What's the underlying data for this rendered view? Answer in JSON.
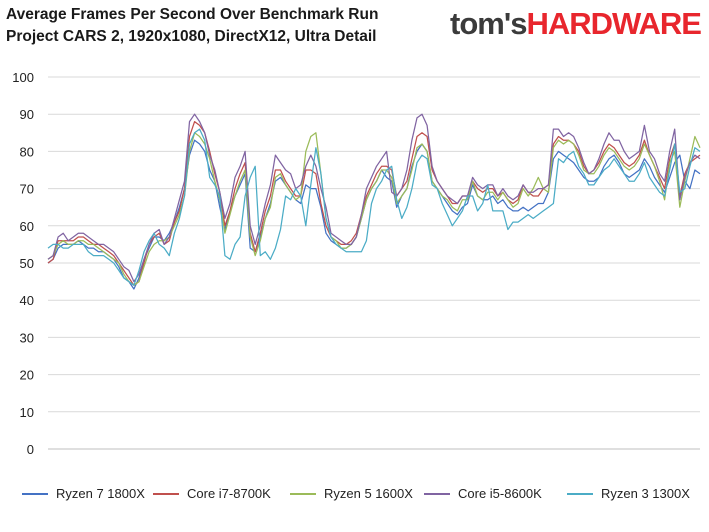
{
  "title_line1": "Average Frames Per Second Over Benchmark Run",
  "title_line2": "Project CARS 2, 1920x1080, DirectX12, Ultra Detail",
  "logo": {
    "part1": "tom's",
    "part2": "HARDWARE"
  },
  "chart_data": {
    "type": "line",
    "title": "Average Frames Per Second Over Benchmark Run",
    "subtitle": "Project CARS 2, 1920x1080, DirectX12, Ultra Detail",
    "xlabel": "",
    "ylabel": "",
    "ylim": [
      0,
      100
    ],
    "yticks": [
      0,
      10,
      20,
      30,
      40,
      50,
      60,
      70,
      80,
      90,
      100
    ],
    "grid": true,
    "legend_position": "bottom",
    "series": [
      {
        "name": "Ryzen 7 1800X",
        "color": "#4472c4",
        "values": [
          50,
          51,
          54,
          55,
          55,
          55,
          56,
          55,
          54,
          54,
          53,
          53,
          52,
          51,
          49,
          46,
          45,
          43,
          46,
          51,
          54,
          57,
          57,
          56,
          58,
          61,
          65,
          70,
          79,
          83,
          82,
          80,
          75,
          72,
          65,
          59,
          64,
          68,
          71,
          74,
          54,
          53,
          57,
          62,
          66,
          72,
          73,
          71,
          69,
          67,
          66,
          71,
          70,
          70,
          65,
          58,
          56,
          55,
          54,
          54,
          55,
          57,
          62,
          67,
          70,
          72,
          75,
          73,
          72,
          65,
          68,
          70,
          76,
          80,
          82,
          80,
          72,
          70,
          68,
          66,
          64,
          63,
          65,
          66,
          71,
          68,
          67,
          67,
          68,
          66,
          67,
          65,
          64,
          64,
          65,
          64,
          65,
          66,
          66,
          69,
          78,
          80,
          79,
          78,
          77,
          75,
          73,
          72,
          72,
          73,
          76,
          78,
          79,
          77,
          74,
          73,
          74,
          75,
          78,
          76,
          73,
          71,
          69,
          73,
          77,
          79,
          72,
          70,
          75,
          74
        ]
      },
      {
        "name": "Core i7-8700K",
        "color": "#c0504d",
        "values": [
          50,
          51,
          56,
          56,
          56,
          56,
          57,
          57,
          56,
          55,
          55,
          54,
          53,
          52,
          50,
          48,
          46,
          44,
          45,
          50,
          55,
          57,
          58,
          55,
          56,
          61,
          64,
          70,
          84,
          88,
          87,
          85,
          80,
          74,
          69,
          60,
          64,
          70,
          74,
          77,
          58,
          53,
          58,
          64,
          68,
          75,
          75,
          72,
          70,
          68,
          68,
          75,
          75,
          74,
          66,
          60,
          57,
          56,
          55,
          55,
          56,
          58,
          63,
          68,
          71,
          74,
          76,
          76,
          75,
          68,
          70,
          72,
          78,
          84,
          85,
          84,
          75,
          72,
          70,
          68,
          66,
          66,
          68,
          68,
          72,
          70,
          69,
          70,
          70,
          68,
          69,
          67,
          66,
          67,
          71,
          69,
          68,
          68,
          70,
          71,
          82,
          84,
          83,
          83,
          82,
          80,
          76,
          74,
          75,
          77,
          80,
          82,
          81,
          79,
          77,
          76,
          77,
          79,
          83,
          79,
          76,
          73,
          70,
          78,
          82,
          68,
          74,
          77,
          78,
          79
        ]
      },
      {
        "name": "Ryzen 5 1600X",
        "color": "#9bbb59",
        "values": [
          51,
          52,
          55,
          56,
          55,
          55,
          56,
          56,
          55,
          55,
          54,
          53,
          52,
          51,
          50,
          47,
          45,
          44,
          45,
          49,
          53,
          55,
          56,
          56,
          57,
          60,
          63,
          68,
          80,
          85,
          84,
          82,
          78,
          72,
          67,
          58,
          63,
          68,
          72,
          75,
          57,
          52,
          56,
          62,
          65,
          73,
          74,
          71,
          69,
          67,
          68,
          80,
          84,
          85,
          74,
          62,
          57,
          56,
          54,
          54,
          55,
          57,
          62,
          67,
          70,
          72,
          75,
          75,
          73,
          66,
          68,
          70,
          75,
          81,
          82,
          80,
          72,
          70,
          68,
          67,
          65,
          64,
          67,
          67,
          72,
          68,
          67,
          69,
          69,
          67,
          69,
          67,
          65,
          66,
          70,
          68,
          70,
          73,
          70,
          69,
          81,
          83,
          82,
          83,
          82,
          79,
          75,
          74,
          74,
          76,
          79,
          81,
          80,
          78,
          76,
          75,
          76,
          78,
          82,
          79,
          76,
          72,
          67,
          77,
          80,
          65,
          72,
          78,
          84,
          81
        ]
      },
      {
        "name": "Core i5-8600K",
        "color": "#8064a2",
        "values": [
          51,
          52,
          57,
          58,
          56,
          57,
          58,
          58,
          57,
          56,
          55,
          55,
          54,
          53,
          51,
          49,
          48,
          45,
          47,
          51,
          55,
          58,
          59,
          55,
          57,
          62,
          67,
          72,
          88,
          90,
          88,
          85,
          79,
          75,
          69,
          62,
          66,
          73,
          76,
          80,
          60,
          55,
          60,
          66,
          71,
          79,
          77,
          75,
          74,
          70,
          71,
          76,
          79,
          76,
          70,
          65,
          58,
          57,
          56,
          55,
          55,
          57,
          63,
          70,
          73,
          76,
          78,
          80,
          69,
          68,
          70,
          75,
          83,
          89,
          90,
          87,
          76,
          72,
          70,
          68,
          67,
          66,
          68,
          68,
          73,
          71,
          70,
          71,
          71,
          68,
          70,
          68,
          67,
          68,
          71,
          69,
          69,
          70,
          70,
          71,
          86,
          86,
          84,
          85,
          84,
          81,
          77,
          74,
          75,
          78,
          82,
          85,
          83,
          83,
          80,
          78,
          79,
          80,
          87,
          80,
          78,
          74,
          72,
          80,
          86,
          67,
          73,
          77,
          79,
          78
        ]
      },
      {
        "name": "Ryzen 3 1300X",
        "color": "#4bacc6",
        "values": [
          54,
          55,
          55,
          54,
          54,
          55,
          55,
          55,
          53,
          52,
          52,
          52,
          51,
          50,
          48,
          46,
          45,
          44,
          48,
          53,
          56,
          58,
          55,
          54,
          52,
          58,
          62,
          68,
          82,
          85,
          86,
          83,
          73,
          71,
          68,
          52,
          51,
          55,
          57,
          68,
          73,
          76,
          52,
          53,
          51,
          54,
          59,
          68,
          67,
          70,
          68,
          60,
          71,
          81,
          74,
          62,
          57,
          55,
          54,
          53,
          53,
          53,
          53,
          56,
          66,
          70,
          72,
          75,
          76,
          67,
          62,
          65,
          70,
          77,
          79,
          78,
          71,
          70,
          66,
          63,
          60,
          62,
          64,
          68,
          68,
          64,
          66,
          71,
          64,
          64,
          64,
          59,
          61,
          61,
          62,
          63,
          62,
          63,
          64,
          65,
          66,
          78,
          77,
          79,
          80,
          76,
          74,
          71,
          71,
          73,
          75,
          76,
          78,
          76,
          74,
          72,
          72,
          74,
          77,
          73,
          71,
          69,
          68,
          75,
          82,
          69,
          70,
          76,
          81,
          80
        ]
      }
    ]
  }
}
